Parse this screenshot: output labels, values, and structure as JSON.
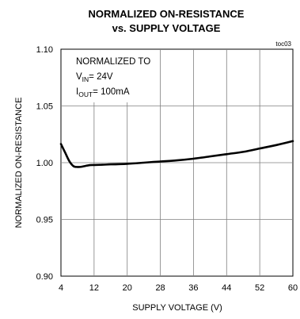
{
  "chart_data": {
    "type": "line",
    "title": "NORMALIZED ON-RESISTANCE",
    "subtitle": "vs. SUPPLY VOLTAGE",
    "xlabel": "SUPPLY VOLTAGE (V)",
    "ylabel": "NORMALIZED ON-RESISTANCE",
    "xlim": [
      4,
      60
    ],
    "ylim": [
      0.9,
      1.1
    ],
    "x_ticks": [
      "4",
      "12",
      "20",
      "28",
      "36",
      "44",
      "52",
      "60"
    ],
    "y_ticks": [
      "1.10",
      "1.05",
      "1.00",
      "0.95",
      "0.90"
    ],
    "grid": true,
    "tag": "toc03",
    "annotation": {
      "line1": "NORMALIZED TO",
      "vin_main": "V",
      "vin_sub": "IN",
      "vin_value": "= 24V",
      "iout_main": "I",
      "iout_sub": "OUT",
      "iout_value": "= 100mA"
    },
    "series": [
      {
        "x": [
          4.0,
          5.0,
          6.0,
          7.0,
          8.0,
          9.0,
          10.0,
          11.0,
          12.0,
          14.0,
          16.0,
          20.0,
          24.0,
          28.0,
          32.0,
          36.0,
          40.0,
          44.0,
          48.0,
          52.0,
          56.0,
          60.0
        ],
        "y": [
          1.0165,
          1.009,
          1.0015,
          0.997,
          0.9962,
          0.9964,
          0.9972,
          0.9978,
          0.998,
          0.9982,
          0.9985,
          0.999,
          1.0,
          1.001,
          1.002,
          1.0035,
          1.0055,
          1.0075,
          1.0095,
          1.0125,
          1.0155,
          1.019
        ]
      }
    ]
  }
}
